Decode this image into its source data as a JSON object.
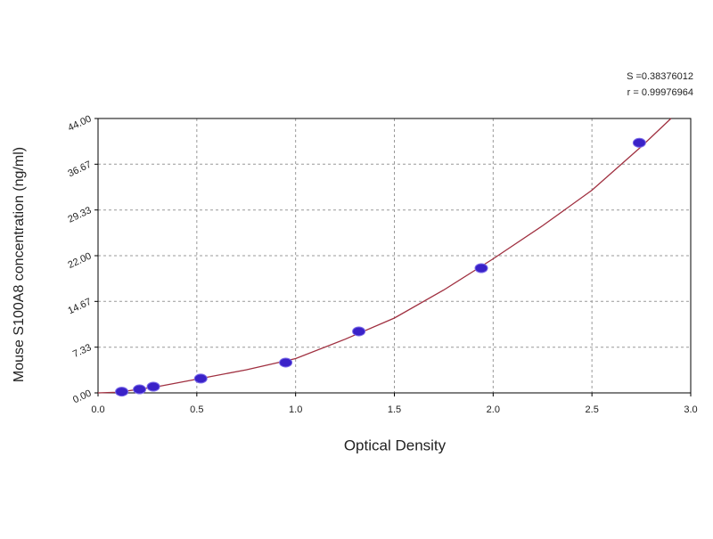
{
  "chart_data": {
    "type": "scatter",
    "annotations": [
      "S =0.38376012",
      "r = 0.99976964"
    ],
    "x_label": "Optical Density",
    "y_label": "Mouse S100A8 concentration (ng/ml)",
    "points": {
      "color": "#3a22c8",
      "x": [
        0.12,
        0.21,
        0.28,
        0.52,
        0.95,
        1.32,
        1.94,
        2.74
      ],
      "y": [
        0.2,
        0.57,
        1.0,
        2.3,
        4.86,
        9.86,
        20.0,
        40.1
      ]
    },
    "fit": {
      "color": "#a03040",
      "x": [
        0.0,
        0.1,
        0.3,
        0.5,
        0.75,
        1.0,
        1.25,
        1.5,
        1.75,
        2.0,
        2.25,
        2.5,
        2.75,
        2.9
      ],
      "y": [
        0.0,
        0.1,
        1.0,
        2.2,
        3.7,
        5.5,
        8.6,
        12.0,
        16.5,
        21.5,
        26.8,
        32.5,
        39.5,
        44.0
      ]
    },
    "xlim": [
      0,
      3
    ],
    "ylim": [
      0,
      44
    ],
    "xticks": [
      {
        "value": 0,
        "label": "0.0"
      },
      0.5,
      {
        "value": 1,
        "label": "1.0"
      },
      1.5,
      {
        "value": 2,
        "label": "2.0"
      },
      2.5,
      {
        "value": 3,
        "label": "3.0"
      }
    ],
    "yticks": [
      {
        "value": 0,
        "label": "0.00"
      },
      7.33,
      14.67,
      {
        "value": 22,
        "label": "22.00"
      },
      29.33,
      36.67,
      {
        "value": 44,
        "label": "44.00"
      }
    ],
    "grid": true
  }
}
